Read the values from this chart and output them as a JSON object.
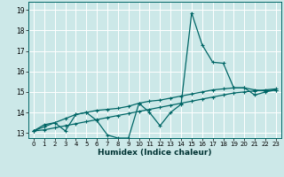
{
  "xlabel": "Humidex (Indice chaleur)",
  "bg_color": "#cce8e8",
  "grid_color": "#ffffff",
  "line_color": "#006666",
  "xlim": [
    -0.5,
    23.5
  ],
  "ylim": [
    12.75,
    19.4
  ],
  "xticks": [
    0,
    1,
    2,
    3,
    4,
    5,
    6,
    7,
    8,
    9,
    10,
    11,
    12,
    13,
    14,
    15,
    16,
    17,
    18,
    19,
    20,
    21,
    22,
    23
  ],
  "yticks": [
    13,
    14,
    15,
    16,
    17,
    18,
    19
  ],
  "line1_x": [
    0,
    1,
    2,
    3,
    4,
    5,
    6,
    7,
    8,
    9,
    10,
    11,
    12,
    13,
    14,
    15,
    16,
    17,
    18,
    19,
    20,
    21,
    22,
    23
  ],
  "line1_y": [
    13.1,
    13.4,
    13.5,
    13.1,
    13.9,
    14.0,
    13.6,
    12.9,
    12.75,
    12.75,
    14.45,
    14.0,
    13.35,
    14.0,
    14.4,
    18.85,
    17.3,
    16.45,
    16.4,
    15.2,
    15.2,
    14.85,
    15.0,
    15.1
  ],
  "line2_x": [
    0,
    1,
    2,
    3,
    4,
    5,
    6,
    7,
    8,
    9,
    10,
    11,
    12,
    13,
    14,
    15,
    16,
    17,
    18,
    19,
    20,
    21,
    22,
    23
  ],
  "line2_y": [
    13.1,
    13.15,
    13.25,
    13.35,
    13.45,
    13.55,
    13.65,
    13.75,
    13.85,
    13.95,
    14.05,
    14.15,
    14.25,
    14.35,
    14.45,
    14.55,
    14.65,
    14.75,
    14.85,
    14.95,
    15.0,
    15.05,
    15.1,
    15.15
  ],
  "line3_x": [
    0,
    1,
    2,
    3,
    4,
    5,
    6,
    7,
    8,
    9,
    10,
    11,
    12,
    13,
    14,
    15,
    16,
    17,
    18,
    19,
    20,
    21,
    22,
    23
  ],
  "line3_y": [
    13.1,
    13.3,
    13.5,
    13.7,
    13.9,
    14.0,
    14.1,
    14.15,
    14.2,
    14.3,
    14.45,
    14.55,
    14.6,
    14.7,
    14.8,
    14.9,
    15.0,
    15.1,
    15.15,
    15.2,
    15.2,
    15.1,
    15.05,
    15.1
  ],
  "marker": "+",
  "markersize": 3,
  "markeredgewidth": 0.8,
  "linewidth": 0.9,
  "xlabel_fontsize": 6.5,
  "xtick_fontsize": 5.0,
  "ytick_fontsize": 5.5,
  "spine_color": "#006666"
}
